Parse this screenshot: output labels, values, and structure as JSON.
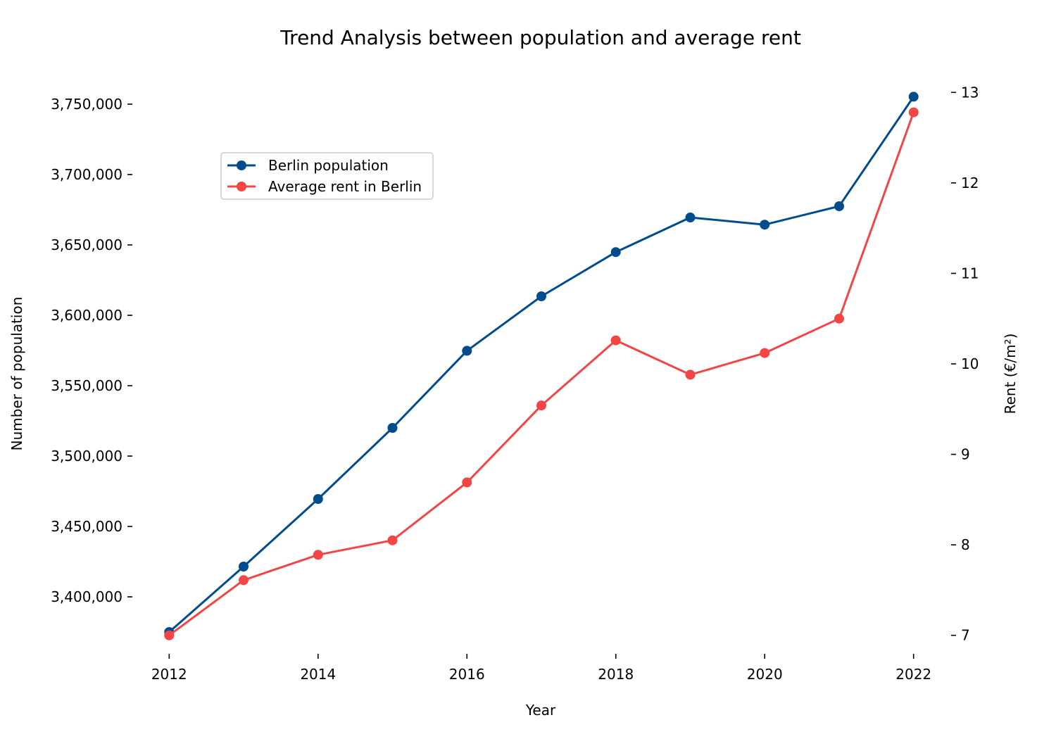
{
  "chart_data": {
    "type": "line",
    "title": "Trend Analysis between population and average rent",
    "xlabel": "Year",
    "ylabel_left": "Number of population",
    "ylabel_right": "Rent (€/m²)",
    "x": [
      2012,
      2013,
      2014,
      2015,
      2016,
      2017,
      2018,
      2019,
      2020,
      2021,
      2022
    ],
    "x_ticks": [
      "2012",
      "2014",
      "2016",
      "2018",
      "2020",
      "2022"
    ],
    "left_ticks": [
      3400000,
      3450000,
      3500000,
      3550000,
      3600000,
      3650000,
      3700000,
      3750000
    ],
    "left_tick_labels": [
      "3,400,000",
      "3,450,000",
      "3,500,000",
      "3,550,000",
      "3,600,000",
      "3,650,000",
      "3,700,000",
      "3,750,000"
    ],
    "right_ticks": [
      7,
      8,
      9,
      10,
      11,
      12,
      13
    ],
    "right_tick_labels": [
      "7",
      "8",
      "9",
      "10",
      "11",
      "12",
      "13"
    ],
    "xlim": [
      2011.6,
      2022.4
    ],
    "ylim_left": [
      3363000,
      3768000
    ],
    "ylim_right": [
      6.85,
      13.15
    ],
    "legend_position": "upper-left",
    "grid": false,
    "series": [
      {
        "name": "Berlin population",
        "axis": "left",
        "color": "#004c8c",
        "marker": "circle",
        "values": [
          3375000,
          3421500,
          3469500,
          3520000,
          3574800,
          3613500,
          3644900,
          3669500,
          3664400,
          3677500,
          3755300
        ]
      },
      {
        "name": "Average rent in Berlin",
        "axis": "right",
        "color": "#f44545",
        "marker": "circle",
        "values": [
          7.0,
          7.61,
          7.89,
          8.05,
          8.69,
          9.54,
          10.26,
          9.88,
          10.12,
          10.5,
          12.78
        ]
      }
    ]
  }
}
